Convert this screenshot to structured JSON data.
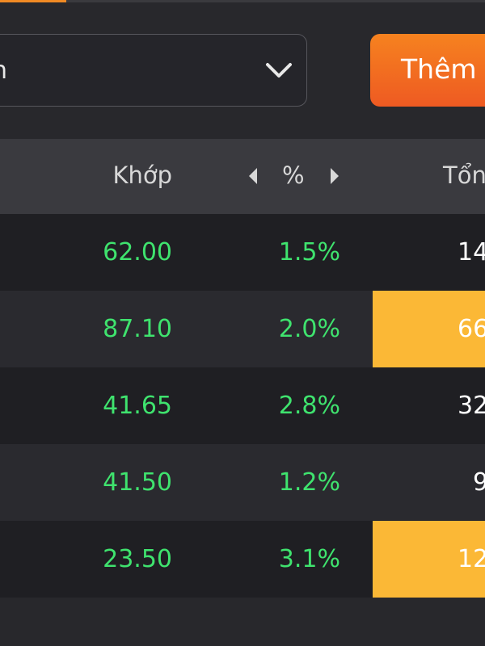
{
  "dropdown": {
    "label": "n"
  },
  "button": {
    "label": "Thêm"
  },
  "table": {
    "headers": {
      "match": "Khớp",
      "percent": "%",
      "total": "Tổn"
    },
    "rows": [
      [
        "62.00",
        "1.5%",
        "14"
      ],
      [
        "87.10",
        "2.0%",
        "66"
      ],
      [
        "41.65",
        "2.8%",
        "32"
      ],
      [
        "41.50",
        "1.2%",
        "9"
      ],
      [
        "23.50",
        "3.1%",
        "12"
      ]
    ]
  }
}
